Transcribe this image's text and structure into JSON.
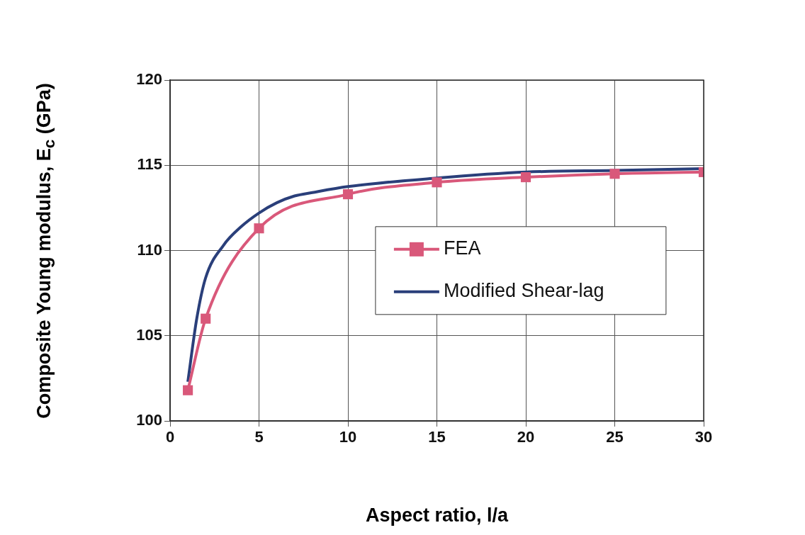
{
  "chart_data": {
    "type": "line",
    "xlabel": "Aspect ratio, l/a",
    "ylabel": "Composite Young modulus, E$_{c}$ (GPa)",
    "xlim": [
      0,
      30
    ],
    "xticks": [
      0,
      5,
      10,
      15,
      20,
      25,
      30
    ],
    "ylim": [
      100,
      120
    ],
    "yticks": [
      100,
      105,
      110,
      115,
      120
    ],
    "grid": true,
    "legend": "right",
    "line_style": "solid",
    "series": [
      {
        "name": "FEA",
        "color": "#d9587a",
        "marker": "square",
        "x": [
          1,
          2,
          5,
          10,
          15,
          20,
          25,
          30
        ],
        "values": [
          101.8,
          106.0,
          111.3,
          113.3,
          114.0,
          114.3,
          114.5,
          114.6
        ]
      },
      {
        "name": "Modified Shear-lag",
        "color": "#2a3f7a",
        "marker": "none",
        "x": [
          1,
          1.5,
          2,
          3,
          4,
          5,
          6,
          7,
          8,
          10,
          15,
          20,
          25,
          30
        ],
        "values": [
          102.3,
          106.0,
          108.4,
          110.3,
          111.4,
          112.2,
          112.8,
          113.2,
          113.4,
          113.75,
          114.25,
          114.6,
          114.7,
          114.8
        ]
      }
    ]
  }
}
